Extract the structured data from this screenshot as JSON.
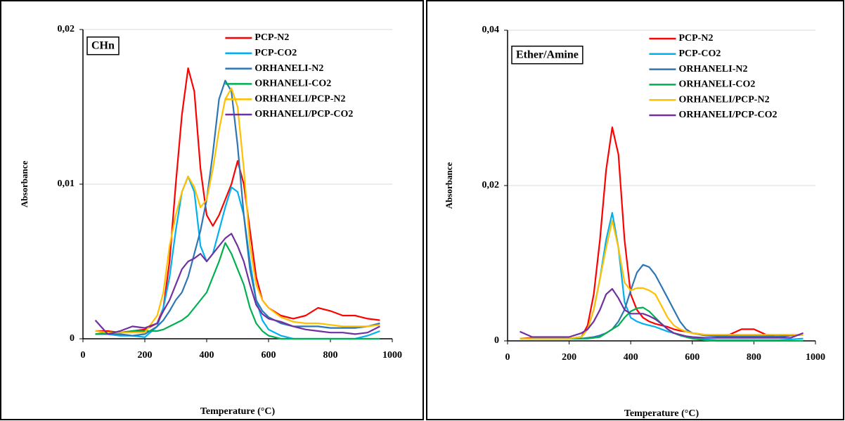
{
  "chart_data": [
    {
      "type": "line",
      "annotation": "CHn",
      "ylabel": "Absorbance",
      "xlabel": "Temperature (°C)",
      "xlim": [
        0,
        1000
      ],
      "xticks": [
        0,
        200,
        400,
        600,
        800,
        1000
      ],
      "ylim": [
        0,
        0.02
      ],
      "yticks": [
        0,
        {
          "value": 0.01,
          "label": "0,01"
        },
        {
          "value": 0.02,
          "label": "0,02"
        }
      ],
      "grid": true,
      "legend": "upper right",
      "x": [
        40,
        80,
        120,
        160,
        200,
        240,
        260,
        280,
        300,
        320,
        340,
        360,
        380,
        400,
        420,
        440,
        460,
        480,
        500,
        520,
        540,
        560,
        580,
        600,
        640,
        680,
        720,
        760,
        800,
        840,
        880,
        920,
        960
      ],
      "series": [
        {
          "name": "PCP-N2",
          "color": "#ff0000",
          "values": [
            0.0005,
            0.0005,
            0.0004,
            0.0005,
            0.0006,
            0.001,
            0.002,
            0.005,
            0.01,
            0.0145,
            0.0175,
            0.016,
            0.011,
            0.008,
            0.0073,
            0.008,
            0.009,
            0.01,
            0.0115,
            0.01,
            0.007,
            0.004,
            0.0025,
            0.002,
            0.0015,
            0.0013,
            0.0015,
            0.002,
            0.0018,
            0.0015,
            0.0015,
            0.0013,
            0.0012
          ]
        },
        {
          "name": "PCP-CO2",
          "color": "#00b0f0",
          "values": [
            0.0003,
            0.0003,
            0.0002,
            0.0002,
            0.0001,
            0.0008,
            0.002,
            0.004,
            0.007,
            0.0095,
            0.0105,
            0.0095,
            0.006,
            0.005,
            0.0055,
            0.007,
            0.0085,
            0.0098,
            0.0095,
            0.008,
            0.005,
            0.0025,
            0.0012,
            0.0006,
            0.0002,
            0,
            0,
            0,
            0,
            0,
            0,
            0.0002,
            0.0005
          ]
        },
        {
          "name": "ORHANELI-N2",
          "color": "#2e75b6",
          "values": [
            0.0003,
            0.0003,
            0.0003,
            0.0002,
            0.0003,
            0.0008,
            0.0012,
            0.0018,
            0.0025,
            0.003,
            0.004,
            0.0055,
            0.007,
            0.009,
            0.012,
            0.0155,
            0.0167,
            0.016,
            0.0125,
            0.008,
            0.0045,
            0.0025,
            0.0018,
            0.0014,
            0.001,
            0.0008,
            0.0008,
            0.0008,
            0.0007,
            0.0007,
            0.0007,
            0.0008,
            0.001
          ]
        },
        {
          "name": "ORHANELI-CO2",
          "color": "#00b050",
          "values": [
            0.0003,
            0.0004,
            0.0004,
            0.0005,
            0.0005,
            0.0005,
            0.0006,
            0.0008,
            0.001,
            0.0012,
            0.0015,
            0.002,
            0.0025,
            0.003,
            0.004,
            0.005,
            0.0062,
            0.0055,
            0.0045,
            0.0035,
            0.002,
            0.001,
            0.0005,
            0.0002,
            0,
            0,
            0,
            0,
            0,
            0,
            0,
            0,
            0
          ]
        },
        {
          "name": "ORHANELI/PCP-N2",
          "color": "#ffc000",
          "values": [
            0.0005,
            0.0004,
            0.0004,
            0.0004,
            0.0004,
            0.0015,
            0.003,
            0.006,
            0.008,
            0.0095,
            0.0105,
            0.0098,
            0.0085,
            0.009,
            0.011,
            0.0135,
            0.0155,
            0.0162,
            0.015,
            0.011,
            0.006,
            0.0035,
            0.0025,
            0.002,
            0.0014,
            0.0011,
            0.001,
            0.001,
            0.0009,
            0.0008,
            0.0008,
            0.0008,
            0.0009
          ]
        },
        {
          "name": "ORHANELI/PCP-CO2",
          "color": "#7030a0",
          "values": [
            0.0012,
            0.0003,
            0.0005,
            0.0008,
            0.0007,
            0.001,
            0.0018,
            0.0025,
            0.0035,
            0.0045,
            0.005,
            0.0052,
            0.0055,
            0.005,
            0.0055,
            0.006,
            0.0065,
            0.0068,
            0.006,
            0.005,
            0.0035,
            0.0022,
            0.0016,
            0.0013,
            0.0011,
            0.0008,
            0.0006,
            0.0005,
            0.0004,
            0.0004,
            0.0003,
            0.0004,
            0.0008
          ]
        }
      ]
    },
    {
      "type": "line",
      "annotation": "Ether/Amine",
      "ylabel": "Absorbance",
      "xlabel": "Temperature (°C)",
      "xlim": [
        0,
        1000
      ],
      "xticks": [
        0,
        200,
        400,
        600,
        800,
        1000
      ],
      "ylim": [
        0,
        0.04
      ],
      "yticks": [
        0,
        {
          "value": 0.02,
          "label": "0,02"
        },
        {
          "value": 0.04,
          "label": "0,04"
        }
      ],
      "grid": true,
      "legend": "upper right",
      "x": [
        40,
        80,
        120,
        160,
        200,
        240,
        260,
        280,
        300,
        320,
        340,
        360,
        380,
        400,
        420,
        440,
        460,
        480,
        500,
        520,
        540,
        560,
        580,
        600,
        640,
        680,
        720,
        760,
        800,
        840,
        880,
        920,
        960
      ],
      "series": [
        {
          "name": "PCP-N2",
          "color": "#ff0000",
          "values": [
            0.0003,
            0.0004,
            0.0003,
            0.0003,
            0.0003,
            0.0005,
            0.002,
            0.006,
            0.013,
            0.022,
            0.0275,
            0.024,
            0.013,
            0.006,
            0.004,
            0.003,
            0.0025,
            0.0022,
            0.002,
            0.0018,
            0.0015,
            0.0013,
            0.0012,
            0.001,
            0.0008,
            0.0007,
            0.0008,
            0.0015,
            0.0015,
            0.0008,
            0.0005,
            0.0007,
            0.0008
          ]
        },
        {
          "name": "PCP-CO2",
          "color": "#00b0f0",
          "values": [
            0.0003,
            0.0003,
            0.0003,
            0.0003,
            0.0003,
            0.0005,
            0.0015,
            0.004,
            0.008,
            0.013,
            0.0165,
            0.012,
            0.005,
            0.003,
            0.0025,
            0.0022,
            0.002,
            0.0018,
            0.0015,
            0.0012,
            0.001,
            0.0008,
            0.0006,
            0.0004,
            0.0002,
            0.0001,
            0.0001,
            0.0001,
            0.0001,
            0.0001,
            0.0001,
            0.0002,
            0.0003
          ]
        },
        {
          "name": "ORHANELI-N2",
          "color": "#2e75b6",
          "values": [
            0.0003,
            0.0003,
            0.0003,
            0.0003,
            0.0003,
            0.0003,
            0.0004,
            0.0005,
            0.0007,
            0.001,
            0.0015,
            0.0025,
            0.004,
            0.0065,
            0.0088,
            0.0098,
            0.0095,
            0.0085,
            0.007,
            0.0055,
            0.004,
            0.0025,
            0.0015,
            0.001,
            0.0007,
            0.0006,
            0.0006,
            0.0006,
            0.0006,
            0.0006,
            0.0006,
            0.0007,
            0.0008
          ]
        },
        {
          "name": "ORHANELI-CO2",
          "color": "#00b050",
          "values": [
            0.0003,
            0.0003,
            0.0003,
            0.0003,
            0.0003,
            0.0003,
            0.0003,
            0.0004,
            0.0005,
            0.001,
            0.0015,
            0.002,
            0.003,
            0.0038,
            0.0042,
            0.0043,
            0.0038,
            0.003,
            0.0022,
            0.0015,
            0.001,
            0.0007,
            0.0005,
            0.0003,
            0.0001,
            0,
            0,
            0,
            0,
            0,
            0,
            0,
            0
          ]
        },
        {
          "name": "ORHANELI/PCP-N2",
          "color": "#ffc000",
          "values": [
            0.0003,
            0.0003,
            0.0003,
            0.0003,
            0.0003,
            0.0005,
            0.0015,
            0.004,
            0.008,
            0.012,
            0.0155,
            0.012,
            0.0075,
            0.0065,
            0.0068,
            0.0068,
            0.0065,
            0.006,
            0.0045,
            0.003,
            0.002,
            0.0015,
            0.0012,
            0.001,
            0.0008,
            0.0008,
            0.0008,
            0.0008,
            0.0008,
            0.0008,
            0.0008,
            0.0008,
            0.0008
          ]
        },
        {
          "name": "ORHANELI/PCP-CO2",
          "color": "#7030a0",
          "values": [
            0.0012,
            0.0005,
            0.0005,
            0.0005,
            0.0005,
            0.001,
            0.0015,
            0.0025,
            0.004,
            0.006,
            0.0067,
            0.0055,
            0.004,
            0.0035,
            0.0035,
            0.0035,
            0.0032,
            0.0028,
            0.0022,
            0.0015,
            0.001,
            0.0008,
            0.0006,
            0.0005,
            0.0004,
            0.0004,
            0.0004,
            0.0004,
            0.0004,
            0.0004,
            0.0004,
            0.0004,
            0.001
          ]
        }
      ]
    }
  ]
}
